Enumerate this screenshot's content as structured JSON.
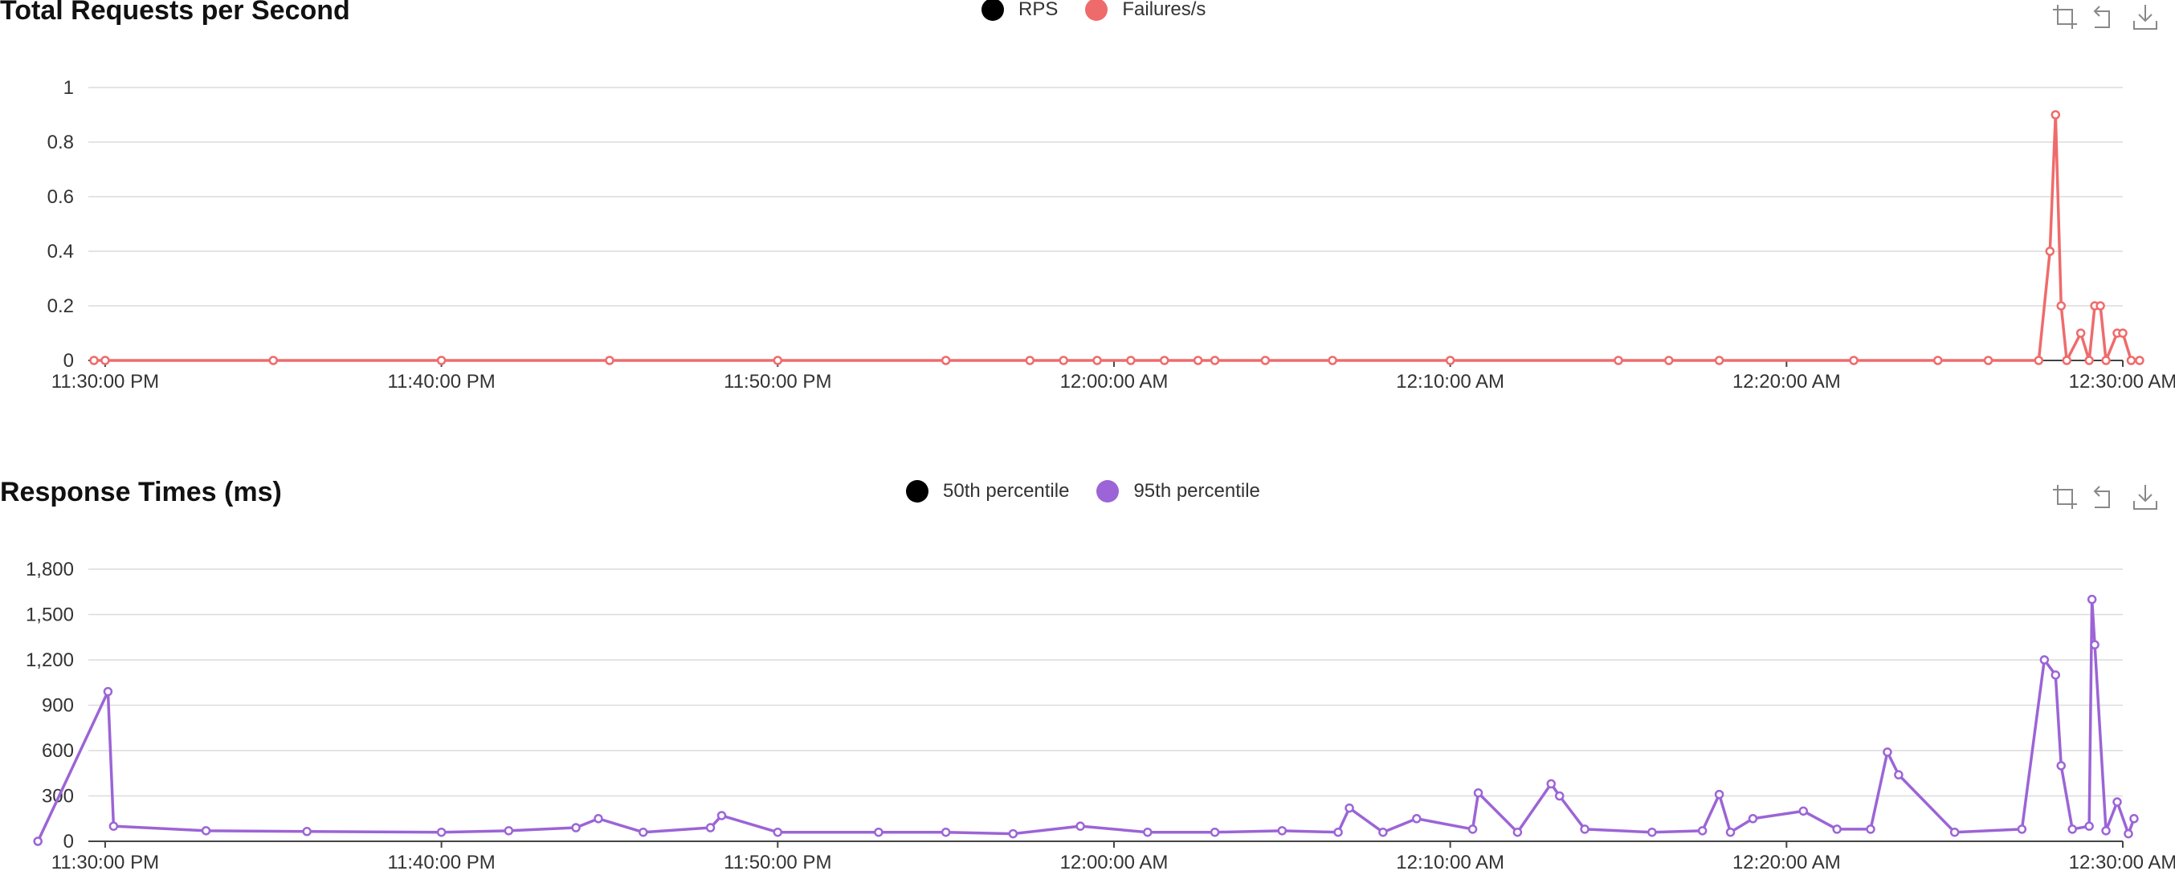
{
  "toolbox": {
    "icons": [
      "zoom-select-icon",
      "zoom-reset-icon",
      "save-image-icon"
    ]
  },
  "chart_data": [
    {
      "type": "line",
      "title": "Total Requests per Second",
      "legend": {
        "placement": "top-center",
        "items": [
          {
            "name": "RPS",
            "color": "#000000"
          },
          {
            "name": "Failures/s",
            "color": "#ef6b6b"
          }
        ]
      },
      "x_ticks": [
        "11:30:00 PM",
        "11:40:00 PM",
        "11:50:00 PM",
        "12:00:00 AM",
        "12:10:00 AM",
        "12:20:00 AM",
        "12:30:00 AM"
      ],
      "y_ticks": [
        "0",
        "0.2",
        "0.4",
        "0.6",
        "0.8",
        "1"
      ],
      "ylim": [
        0,
        1
      ],
      "grid": true,
      "series": [
        {
          "name": "Failures/s",
          "color": "#ef6b6b",
          "x": [
            "11:29:40 PM",
            "11:30:00 PM",
            "11:35:00 PM",
            "11:40:00 PM",
            "11:45:00 PM",
            "11:50:00 PM",
            "11:55:00 PM",
            "11:57:30 PM",
            "11:58:30 PM",
            "11:59:30 PM",
            "12:00:30 AM",
            "12:01:30 AM",
            "12:02:30 AM",
            "12:03:00 AM",
            "12:04:30 AM",
            "12:06:30 AM",
            "12:10:00 AM",
            "12:15:00 AM",
            "12:16:30 AM",
            "12:18:00 AM",
            "12:22:00 AM",
            "12:24:30 AM",
            "12:26:00 AM",
            "12:27:30 AM",
            "12:27:50 AM",
            "12:28:00 AM",
            "12:28:10 AM",
            "12:28:20 AM",
            "12:28:45 AM",
            "12:29:00 AM",
            "12:29:10 AM",
            "12:29:20 AM",
            "12:29:30 AM",
            "12:29:50 AM",
            "12:30:00 AM",
            "12:30:15 AM",
            "12:30:30 AM"
          ],
          "y": [
            0,
            0,
            0,
            0,
            0,
            0,
            0,
            0,
            0,
            0,
            0,
            0,
            0,
            0,
            0,
            0,
            0,
            0,
            0,
            0,
            0,
            0,
            0,
            0,
            0.4,
            0.9,
            0.2,
            0,
            0.1,
            0,
            0.2,
            0.2,
            0,
            0.1,
            0.1,
            0,
            0
          ]
        },
        {
          "name": "RPS",
          "color": "#000000",
          "x": [],
          "y": []
        }
      ]
    },
    {
      "type": "line",
      "title": "Response Times (ms)",
      "legend": {
        "placement": "top-center",
        "items": [
          {
            "name": "50th percentile",
            "color": "#000000"
          },
          {
            "name": "95th percentile",
            "color": "#9c64d6"
          }
        ]
      },
      "x_ticks": [
        "11:30:00 PM",
        "11:40:00 PM",
        "11:50:00 PM",
        "12:00:00 AM",
        "12:10:00 AM",
        "12:20:00 AM",
        "12:30:00 AM"
      ],
      "y_ticks": [
        "0",
        "300",
        "600",
        "900",
        "1,200",
        "1,500",
        "1,800"
      ],
      "ylim": [
        0,
        1800
      ],
      "grid": true,
      "series": [
        {
          "name": "95th percentile",
          "color": "#9c64d6",
          "x": [
            "11:28:00 PM",
            "11:30:05 PM",
            "11:30:15 PM",
            "11:33:00 PM",
            "11:36:00 PM",
            "11:40:00 PM",
            "11:42:00 PM",
            "11:44:00 PM",
            "11:44:40 PM",
            "11:46:00 PM",
            "11:48:00 PM",
            "11:48:20 PM",
            "11:50:00 PM",
            "11:53:00 PM",
            "11:55:00 PM",
            "11:57:00 PM",
            "11:59:00 PM",
            "12:01:00 AM",
            "12:03:00 AM",
            "12:05:00 AM",
            "12:06:40 AM",
            "12:07:00 AM",
            "12:08:00 AM",
            "12:09:00 AM",
            "12:10:40 AM",
            "12:10:50 AM",
            "12:12:00 AM",
            "12:13:00 AM",
            "12:13:15 AM",
            "12:14:00 AM",
            "12:16:00 AM",
            "12:17:30 AM",
            "12:18:00 AM",
            "12:18:20 AM",
            "12:19:00 AM",
            "12:20:30 AM",
            "12:21:30 AM",
            "12:22:30 AM",
            "12:23:00 AM",
            "12:23:20 AM",
            "12:25:00 AM",
            "12:27:00 AM",
            "12:27:40 AM",
            "12:28:00 AM",
            "12:28:10 AM",
            "12:28:30 AM",
            "12:29:00 AM",
            "12:29:05 AM",
            "12:29:10 AM",
            "12:29:30 AM",
            "12:29:50 AM",
            "12:30:10 AM",
            "12:30:20 AM"
          ],
          "y": [
            0,
            990,
            100,
            70,
            65,
            60,
            70,
            90,
            150,
            60,
            90,
            170,
            60,
            60,
            60,
            50,
            100,
            60,
            60,
            70,
            60,
            220,
            60,
            150,
            80,
            320,
            60,
            380,
            300,
            80,
            60,
            70,
            310,
            60,
            150,
            200,
            80,
            80,
            590,
            440,
            60,
            80,
            1200,
            1100,
            500,
            80,
            100,
            1600,
            1300,
            70,
            260,
            50,
            150
          ]
        },
        {
          "name": "50th percentile",
          "color": "#000000",
          "x": [],
          "y": []
        }
      ]
    }
  ]
}
